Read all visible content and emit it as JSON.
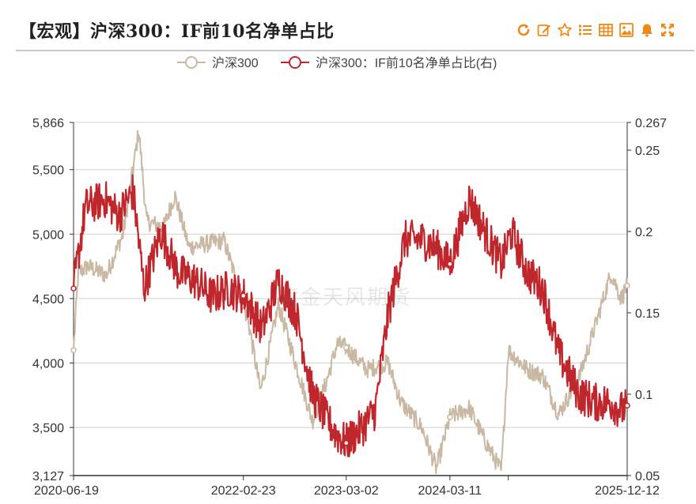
{
  "header": {
    "title": "【宏观】沪深300：IF前10名净单占比",
    "tools": [
      "refresh-icon",
      "edit-icon",
      "star-icon",
      "list-icon",
      "table-icon",
      "image-icon",
      "bell-icon",
      "fullscreen-icon"
    ],
    "accent": "#f0891a"
  },
  "watermark": "紫金天风期货",
  "chart_data": {
    "type": "line",
    "legend": {
      "placement": "top-center"
    },
    "x_ticks": [
      "2020-06-19",
      "2022-02-23",
      "2023-03-02",
      "2024-03-11",
      "2025-12-12"
    ],
    "y_left": {
      "ticks": [
        "5,866",
        "5,500",
        "5,000",
        "4,500",
        "4,000",
        "3,500",
        "3,127"
      ],
      "min": 3127,
      "max": 5866
    },
    "y_right": {
      "ticks": [
        "0.267",
        "0.25",
        "0.2",
        "0.15",
        "0.1",
        "0.05"
      ],
      "min": 0.05,
      "max": 0.267
    },
    "grid": true,
    "series": [
      {
        "name": "沪深300",
        "axis": "left",
        "color": "#c9b9a3",
        "points": [
          [
            "2020-06-19",
            4100
          ],
          [
            "2020-07-06",
            4700
          ],
          [
            "2020-08-10",
            4750
          ],
          [
            "2020-10-15",
            4680
          ],
          [
            "2020-12-15",
            5000
          ],
          [
            "2021-01-20",
            5500
          ],
          [
            "2021-02-10",
            5807
          ],
          [
            "2021-03-10",
            5100
          ],
          [
            "2021-05-10",
            5050
          ],
          [
            "2021-06-20",
            5300
          ],
          [
            "2021-08-10",
            4900
          ],
          [
            "2021-10-01",
            4920
          ],
          [
            "2021-12-15",
            4950
          ],
          [
            "2022-01-20",
            4700
          ],
          [
            "2022-03-15",
            4300
          ],
          [
            "2022-04-26",
            3780
          ],
          [
            "2022-06-30",
            4450
          ],
          [
            "2022-08-10",
            4150
          ],
          [
            "2022-10-31",
            3550
          ],
          [
            "2022-12-20",
            3850
          ],
          [
            "2023-01-28",
            4150
          ],
          [
            "2023-03-02",
            4120
          ],
          [
            "2023-05-15",
            3950
          ],
          [
            "2023-07-31",
            4000
          ],
          [
            "2023-09-15",
            3700
          ],
          [
            "2023-11-30",
            3500
          ],
          [
            "2024-01-22",
            3180
          ],
          [
            "2024-03-11",
            3580
          ],
          [
            "2024-05-20",
            3650
          ],
          [
            "2024-07-15",
            3400
          ],
          [
            "2024-09-13",
            3160
          ],
          [
            "2024-10-08",
            4100
          ],
          [
            "2024-12-15",
            3950
          ],
          [
            "2025-02-10",
            3900
          ],
          [
            "2025-04-08",
            3600
          ],
          [
            "2025-06-20",
            3880
          ],
          [
            "2025-08-20",
            4300
          ],
          [
            "2025-10-15",
            4700
          ],
          [
            "2025-11-20",
            4500
          ],
          [
            "2025-12-12",
            4600
          ]
        ]
      },
      {
        "name": "沪深300：IF前10名净单占比(右)",
        "axis": "right",
        "color": "#c0272d",
        "points": [
          [
            "2020-06-19",
            0.165
          ],
          [
            "2020-08-01",
            0.215
          ],
          [
            "2020-10-10",
            0.22
          ],
          [
            "2020-12-01",
            0.21
          ],
          [
            "2021-01-20",
            0.225
          ],
          [
            "2021-03-01",
            0.165
          ],
          [
            "2021-05-01",
            0.2
          ],
          [
            "2021-07-01",
            0.175
          ],
          [
            "2021-09-01",
            0.17
          ],
          [
            "2021-11-01",
            0.16
          ],
          [
            "2022-01-01",
            0.165
          ],
          [
            "2022-03-01",
            0.16
          ],
          [
            "2022-05-01",
            0.14
          ],
          [
            "2022-07-01",
            0.17
          ],
          [
            "2022-09-01",
            0.15
          ],
          [
            "2022-10-31",
            0.1
          ],
          [
            "2022-12-20",
            0.085
          ],
          [
            "2023-01-28",
            0.075
          ],
          [
            "2023-03-02",
            0.07
          ],
          [
            "2023-05-01",
            0.08
          ],
          [
            "2023-06-15",
            0.09
          ],
          [
            "2023-08-01",
            0.15
          ],
          [
            "2023-09-30",
            0.195
          ],
          [
            "2023-11-30",
            0.195
          ],
          [
            "2024-01-22",
            0.19
          ],
          [
            "2024-03-11",
            0.18
          ],
          [
            "2024-05-20",
            0.22
          ],
          [
            "2024-07-15",
            0.2
          ],
          [
            "2024-09-13",
            0.18
          ],
          [
            "2024-10-20",
            0.2
          ],
          [
            "2024-12-15",
            0.175
          ],
          [
            "2025-02-10",
            0.165
          ],
          [
            "2025-04-08",
            0.125
          ],
          [
            "2025-06-20",
            0.1
          ],
          [
            "2025-08-20",
            0.095
          ],
          [
            "2025-10-15",
            0.095
          ],
          [
            "2025-11-20",
            0.09
          ],
          [
            "2025-12-12",
            0.093
          ]
        ]
      }
    ]
  }
}
